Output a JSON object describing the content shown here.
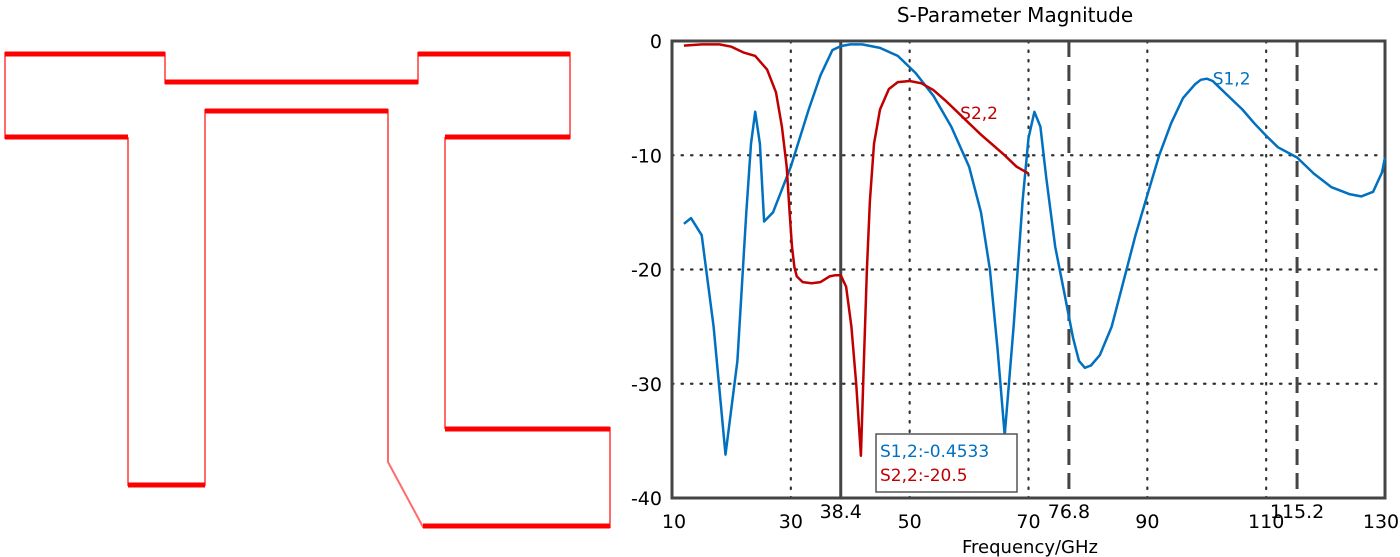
{
  "layout_panel": {
    "outline_color": "#ff0000",
    "description": "Antenna/filter layout outline"
  },
  "chart_data": {
    "type": "line",
    "title": "S-Parameter Magnitude",
    "xlabel": "Frequency/GHz",
    "ylabel": "",
    "xlim": [
      10,
      130
    ],
    "ylim": [
      -40,
      0
    ],
    "xticks": [
      10,
      30,
      50,
      70,
      90,
      110,
      130
    ],
    "yticks": [
      0,
      -10,
      -20,
      -30,
      -40
    ],
    "xtick_labels": [
      "10",
      "30",
      "50",
      "70",
      "90",
      "110",
      "130"
    ],
    "ytick_labels": [
      "0",
      "-10",
      "-20",
      "-30",
      "-40"
    ],
    "grid": true,
    "marker_lines": [
      {
        "x": 38.4,
        "label": "38.4",
        "style": "solid"
      },
      {
        "x": 76.8,
        "label": "76.8",
        "style": "dashed"
      },
      {
        "x": 115.2,
        "label": "115.2",
        "style": "dashed"
      }
    ],
    "series": [
      {
        "name": "S1,2",
        "color": "#0070c0",
        "label_pos": {
          "x": 101,
          "y": -3.3
        },
        "x": [
          12,
          13.2,
          15,
          17,
          19,
          21,
          22.5,
          23.3,
          24,
          24.8,
          25.5,
          27,
          30,
          33,
          35,
          37,
          38.4,
          40,
          42,
          45,
          48,
          51,
          54,
          57,
          60,
          62,
          63.5,
          64.8,
          66,
          67.5,
          69,
          70,
          71,
          72,
          73,
          74.5,
          76,
          77.5,
          78.5,
          79.5,
          80.5,
          82,
          84,
          86,
          88,
          90,
          92,
          94,
          96,
          98,
          99,
          100,
          101,
          102,
          104,
          106,
          108,
          110,
          112,
          115.2,
          118,
          121,
          124,
          126,
          128,
          129.5,
          130
        ],
        "values": [
          -16,
          -15.5,
          -17,
          -25,
          -36.2,
          -28,
          -15,
          -9,
          -6.2,
          -9,
          -15.8,
          -15,
          -11,
          -6,
          -3,
          -0.8,
          -0.45,
          -0.3,
          -0.3,
          -0.6,
          -1.3,
          -2.8,
          -4.8,
          -7.5,
          -11,
          -15,
          -20,
          -27,
          -34.5,
          -25,
          -14,
          -8.5,
          -6.2,
          -7.5,
          -12,
          -18,
          -22,
          -26,
          -28,
          -28.6,
          -28.4,
          -27.5,
          -25,
          -21,
          -17,
          -13.5,
          -10,
          -7.2,
          -5,
          -3.8,
          -3.4,
          -3.3,
          -3.5,
          -4,
          -5,
          -6,
          -7.2,
          -8.3,
          -9.3,
          -10.2,
          -11.6,
          -12.8,
          -13.4,
          -13.6,
          -13.2,
          -11.5,
          -10.2
        ]
      },
      {
        "name": "S2,2",
        "color": "#c00000",
        "label_pos": {
          "x": 58.5,
          "y": -6.3
        },
        "x": [
          12,
          15,
          18,
          20,
          22,
          24,
          26,
          27.5,
          28.5,
          29.3,
          29.8,
          30.2,
          30.6,
          31,
          32,
          33.5,
          35,
          36.5,
          37.5,
          38.4,
          39.3,
          40.2,
          41,
          41.8,
          42.3,
          42.8,
          43.3,
          44,
          45,
          46.5,
          48,
          50,
          52,
          54,
          56,
          58,
          60,
          62,
          64,
          66,
          68,
          70
        ],
        "values": [
          -0.4,
          -0.3,
          -0.3,
          -0.5,
          -1.0,
          -1.3,
          -2.5,
          -4.5,
          -7.5,
          -11,
          -15,
          -18,
          -19.8,
          -20.6,
          -21.1,
          -21.2,
          -21.1,
          -20.6,
          -20.5,
          -20.5,
          -21.5,
          -25,
          -30,
          -36.3,
          -28,
          -20,
          -14,
          -9,
          -6,
          -4.2,
          -3.6,
          -3.5,
          -3.7,
          -4.3,
          -5.2,
          -6.2,
          -7.2,
          -8.2,
          -9.1,
          -10,
          -11,
          -11.6
        ]
      }
    ],
    "annotation_box": {
      "lines": [
        {
          "text": "S1,2:-0.4533",
          "color": "#0070c0"
        },
        {
          "text": "S2,2:-20.5",
          "color": "#c00000"
        }
      ]
    }
  }
}
